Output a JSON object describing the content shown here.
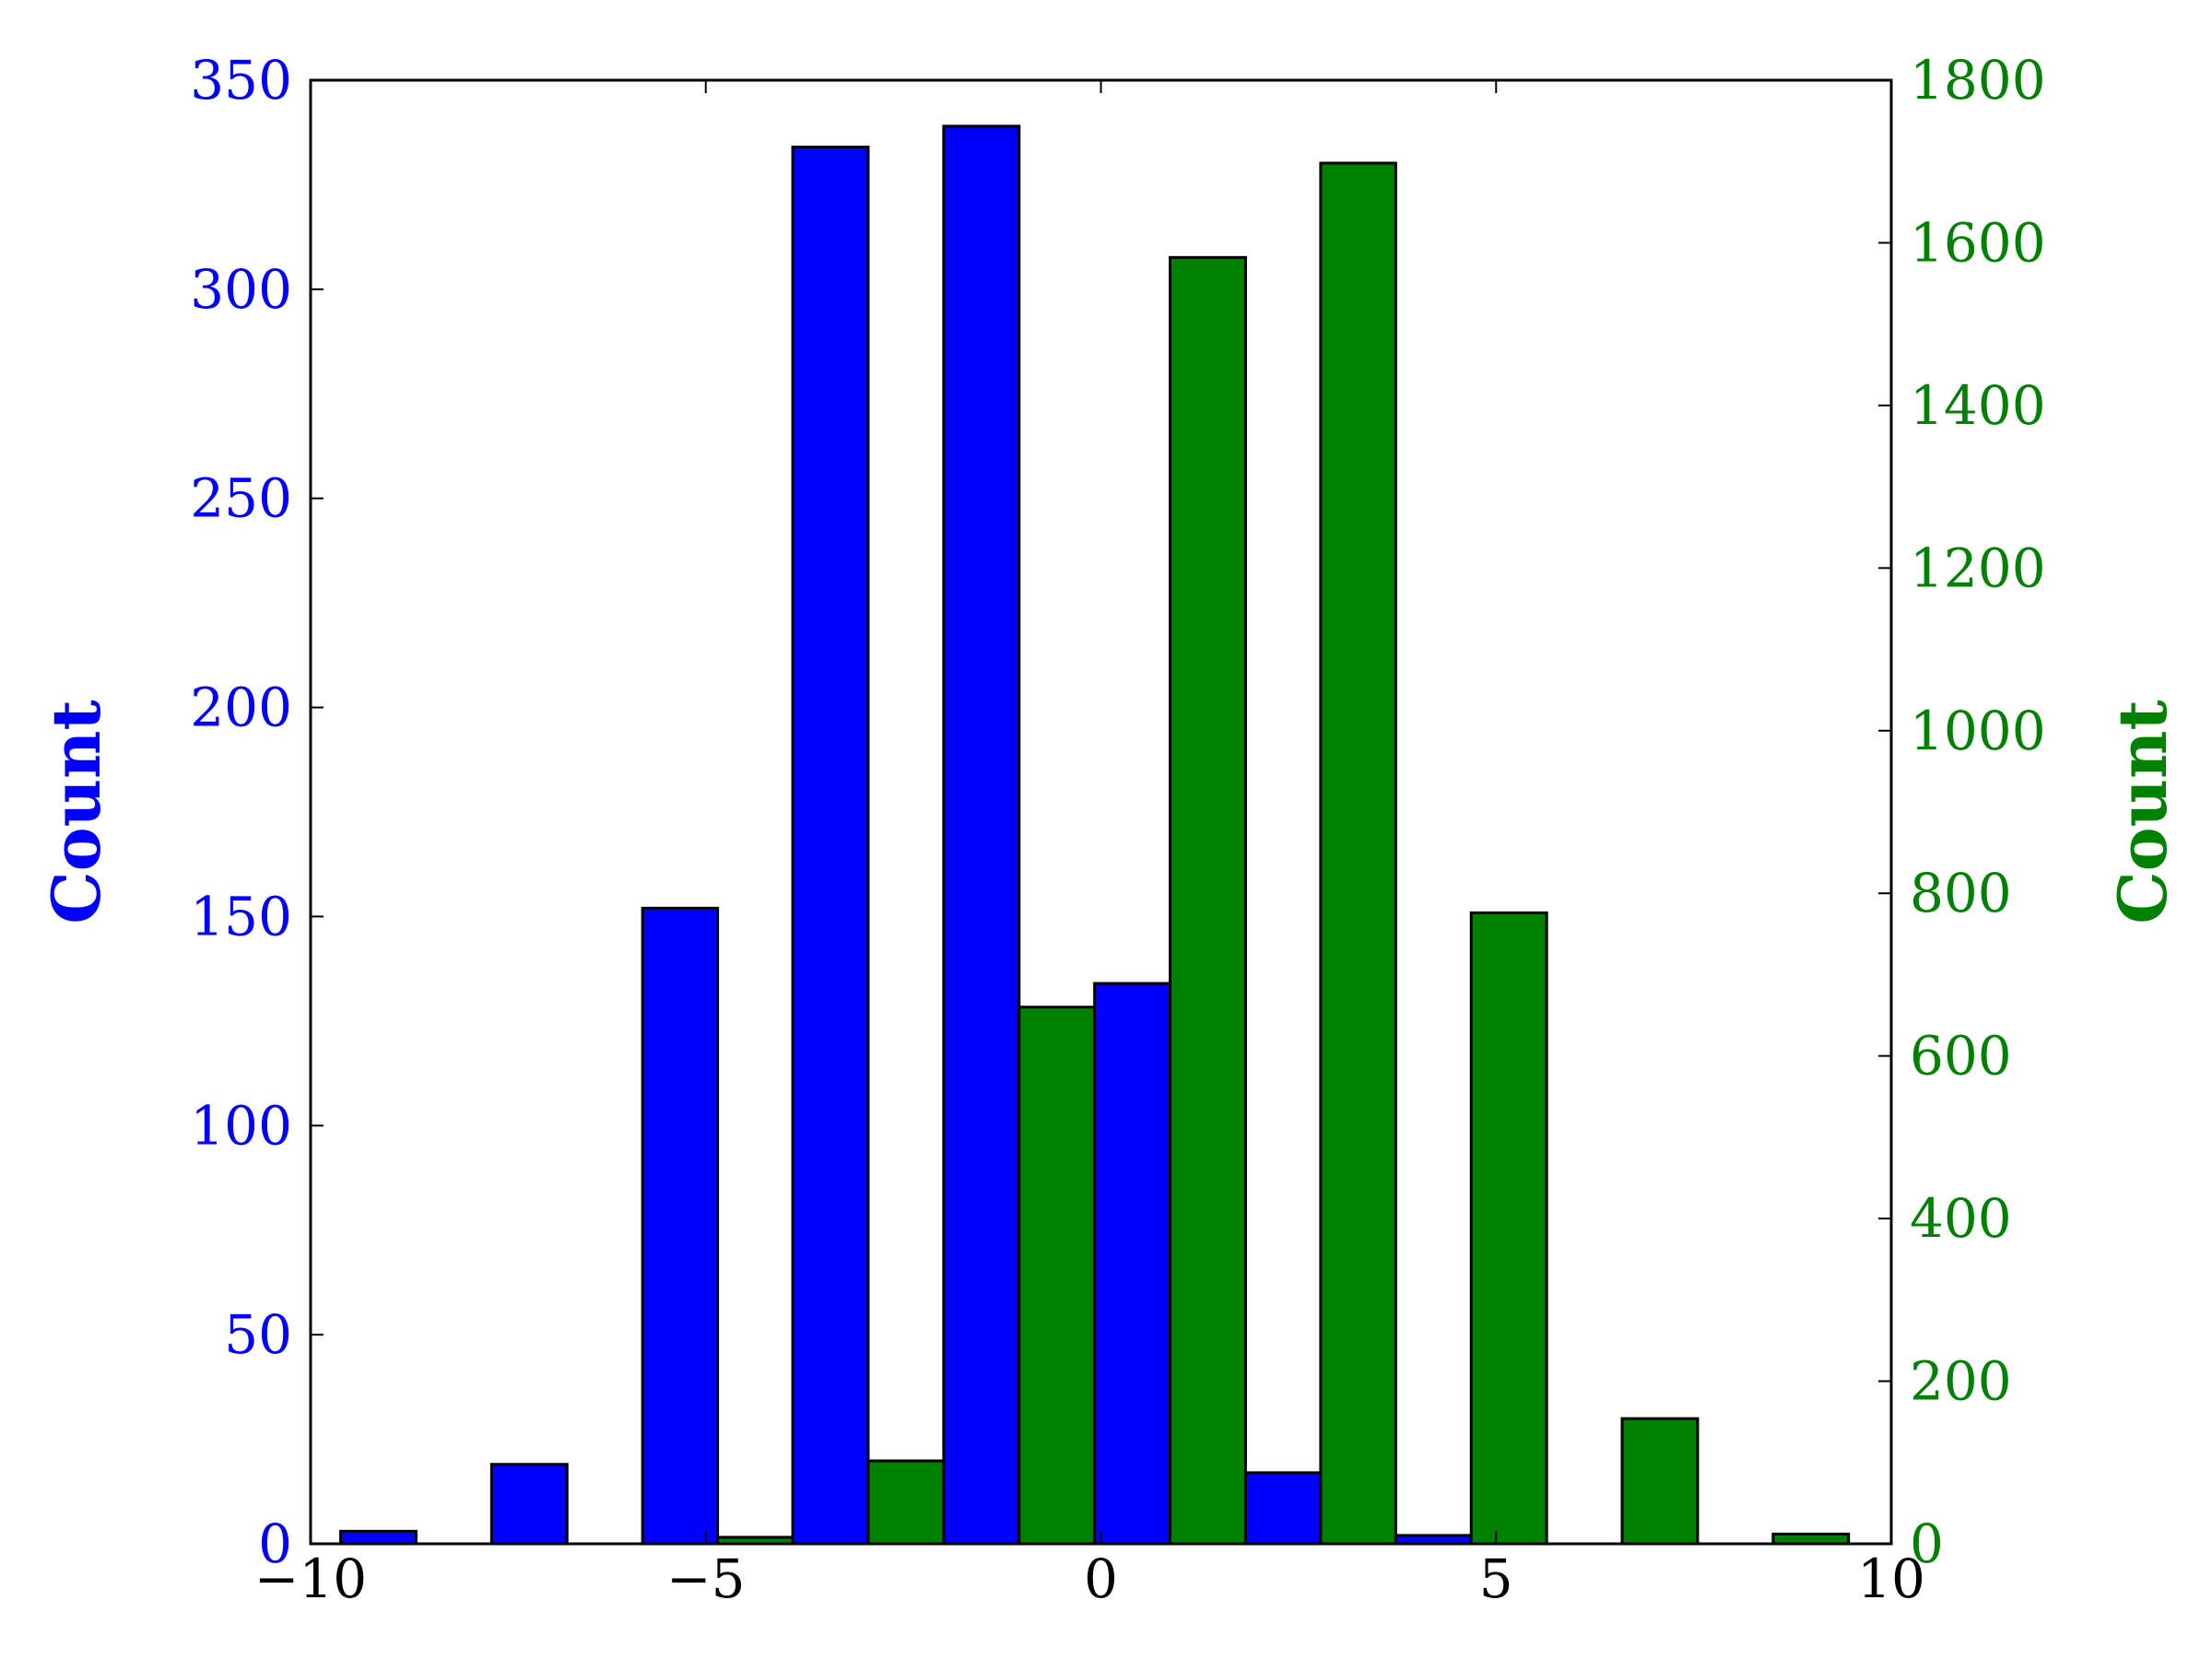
{
  "chart_data": {
    "type": "bar",
    "x_axis": {
      "range": [
        -10,
        10
      ],
      "ticks": [
        -10,
        -5,
        0,
        5,
        10
      ],
      "tick_labels": [
        "−10",
        "−5",
        "0",
        "5",
        "10"
      ],
      "label": "",
      "color": "#000000"
    },
    "y_axis_left": {
      "label": "Count",
      "range": [
        0,
        350
      ],
      "ticks": [
        0,
        50,
        100,
        150,
        200,
        250,
        300,
        350
      ],
      "tick_labels": [
        "0",
        "50",
        "100",
        "150",
        "200",
        "250",
        "300",
        "350"
      ],
      "color": "#0000ff"
    },
    "y_axis_right": {
      "label": "Count",
      "range": [
        0,
        1800
      ],
      "ticks": [
        0,
        200,
        400,
        600,
        800,
        1000,
        1200,
        1400,
        1600,
        1800
      ],
      "tick_labels": [
        "0",
        "200",
        "400",
        "600",
        "800",
        "1000",
        "1200",
        "1400",
        "1600",
        "1800"
      ],
      "color": "#008000"
    },
    "bin_edges": [
      -9.62,
      -7.71,
      -5.8,
      -3.9,
      -1.99,
      -0.08,
      1.83,
      3.73,
      5.64,
      7.55,
      9.46
    ],
    "series": [
      {
        "axis": "left",
        "color": "#0000ff",
        "values": [
          3,
          19,
          152,
          334,
          339,
          134,
          17,
          2,
          0,
          0
        ]
      },
      {
        "axis": "right",
        "color": "#008000",
        "values": [
          0,
          0,
          8,
          102,
          660,
          1582,
          1698,
          776,
          154,
          12
        ]
      }
    ],
    "grid": false,
    "legend": "none"
  }
}
